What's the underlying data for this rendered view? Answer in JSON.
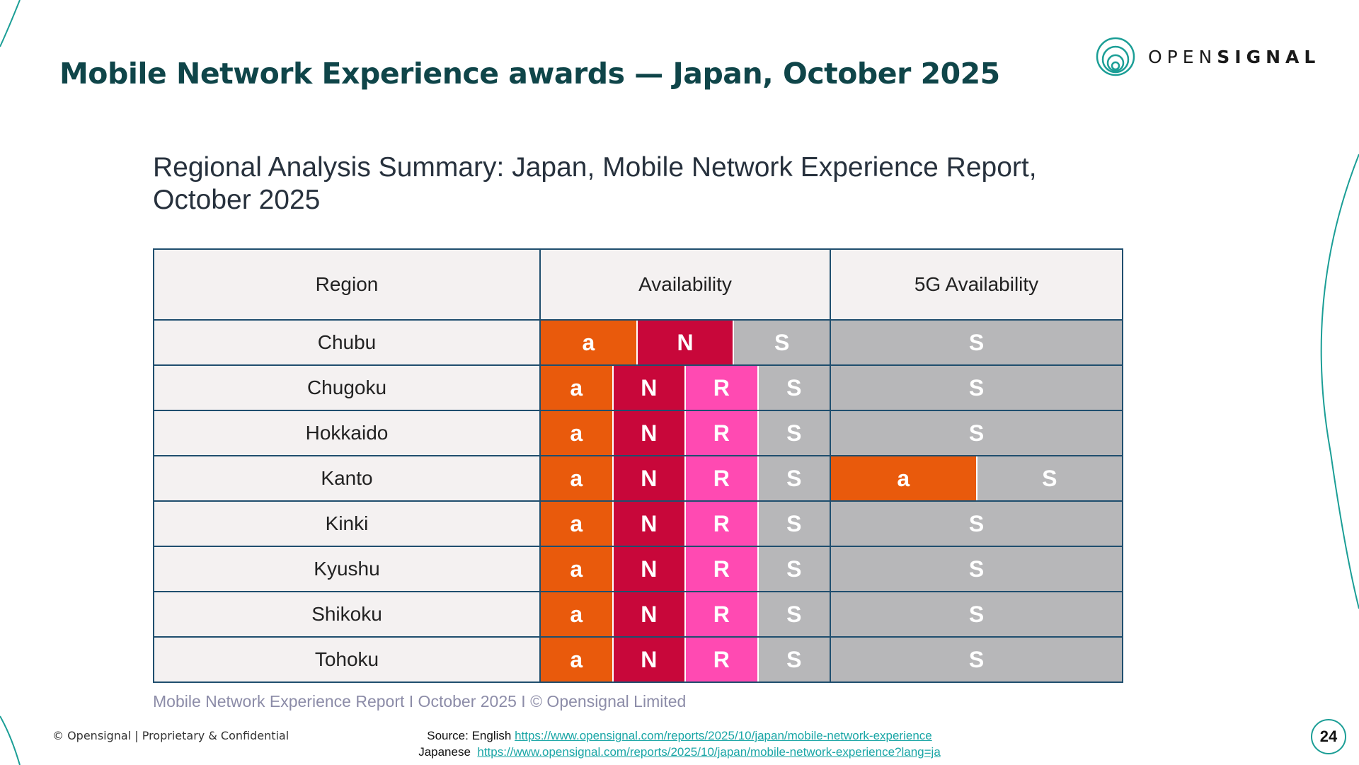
{
  "slide": {
    "title": "Mobile Network Experience awards — Japan, October 2025",
    "page_number": "24",
    "footer_left": "© Opensignal | Proprietary & Confidential",
    "colors": {
      "title": "#0f4549",
      "accent_teal": "#1b9e96",
      "operator_a": "#e95a0c",
      "operator_N": "#c8073a",
      "operator_R": "#ff4ab2",
      "operator_S": "#b7b7b9"
    }
  },
  "logo": {
    "text_light": "OPEN",
    "text_bold": "SIGNAL",
    "icon": "opensignal-logo-icon"
  },
  "summary": {
    "title": "Regional Analysis Summary: Japan, Mobile Network Experience Report, October 2025",
    "columns": [
      "Region",
      "Availability",
      "5G Availability"
    ],
    "rows": [
      {
        "region": "Chubu",
        "availability": [
          "a",
          "N",
          "S"
        ],
        "availability_5g": [
          "S"
        ]
      },
      {
        "region": "Chugoku",
        "availability": [
          "a",
          "N",
          "R",
          "S"
        ],
        "availability_5g": [
          "S"
        ]
      },
      {
        "region": "Hokkaido",
        "availability": [
          "a",
          "N",
          "R",
          "S"
        ],
        "availability_5g": [
          "S"
        ]
      },
      {
        "region": "Kanto",
        "availability": [
          "a",
          "N",
          "R",
          "S"
        ],
        "availability_5g": [
          "a",
          "S"
        ]
      },
      {
        "region": "Kinki",
        "availability": [
          "a",
          "N",
          "R",
          "S"
        ],
        "availability_5g": [
          "S"
        ]
      },
      {
        "region": "Kyushu",
        "availability": [
          "a",
          "N",
          "R",
          "S"
        ],
        "availability_5g": [
          "S"
        ]
      },
      {
        "region": "Shikoku",
        "availability": [
          "a",
          "N",
          "R",
          "S"
        ],
        "availability_5g": [
          "S"
        ]
      },
      {
        "region": "Tohoku",
        "availability": [
          "a",
          "N",
          "R",
          "S"
        ],
        "availability_5g": [
          "S"
        ]
      }
    ],
    "report_line": "Mobile Network Experience Report I October 2025 I © Opensignal Limited"
  },
  "source": {
    "english_label": "Source: English",
    "english_url": "https://www.opensignal.com/reports/2025/10/japan/mobile-network-experience",
    "japanese_label": "Japanese",
    "japanese_url": "https://www.opensignal.com/reports/2025/10/japan/mobile-network-experience?lang=ja"
  }
}
